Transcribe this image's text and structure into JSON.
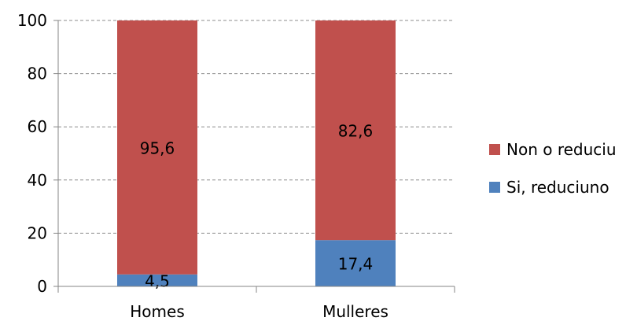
{
  "chart_data": {
    "type": "bar",
    "stacked": true,
    "categories": [
      "Homes",
      "Mulleres"
    ],
    "series": [
      {
        "name": "Si, reduciuno",
        "values": [
          4.5,
          17.4
        ],
        "labels": [
          "4,5",
          "17,4"
        ],
        "color": "#4f81bd"
      },
      {
        "name": "Non o reduciu",
        "values": [
          95.6,
          82.6
        ],
        "labels": [
          "95,6",
          "82,6"
        ],
        "color": "#c0504d"
      }
    ],
    "ylim": [
      0,
      100
    ],
    "yticks": [
      0,
      20,
      40,
      60,
      80,
      100
    ],
    "ytick_labels": [
      "0",
      "20",
      "40",
      "60",
      "80",
      "100"
    ],
    "grid": true,
    "legend_position": "right",
    "legend_order": [
      "Non o reduciu",
      "Si, reduciuno"
    ]
  }
}
